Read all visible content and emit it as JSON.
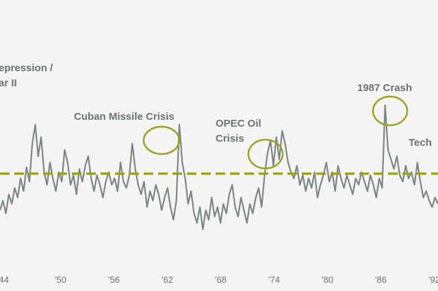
{
  "chart_data": {
    "type": "line",
    "title": "",
    "xlabel": "",
    "ylabel": "",
    "x_tick_labels": [
      "'44",
      "'50",
      "'56",
      "'62",
      "'68",
      "'74",
      "'80",
      "'86",
      "'92"
    ],
    "grid": false,
    "reference_line": {
      "style": "dashed",
      "color": "#9aa31e",
      "relative_level": 0.5
    },
    "colors": {
      "series": "#7d8585",
      "reference": "#9aa31e",
      "circle": "#9aa31e",
      "text": "#6b7373",
      "background": "#f4f4f4"
    },
    "annotations": [
      {
        "lines": [
          "epression /",
          "ar II"
        ]
      },
      {
        "lines": [
          "Cuban Missile Crisis"
        ]
      },
      {
        "lines": [
          "OPEC Oil",
          "Crisis"
        ]
      },
      {
        "lines": [
          "1987 Crash"
        ]
      },
      {
        "lines": [
          "Tech"
        ]
      }
    ],
    "series": [
      {
        "values": [
          0.28,
          0.34,
          0.26,
          0.38,
          0.32,
          0.42,
          0.36,
          0.48,
          0.4,
          0.55,
          0.46,
          0.7,
          0.82,
          0.62,
          0.74,
          0.52,
          0.44,
          0.58,
          0.48,
          0.4,
          0.52,
          0.46,
          0.66,
          0.58,
          0.44,
          0.5,
          0.38,
          0.54,
          0.46,
          0.56,
          0.62,
          0.48,
          0.4,
          0.5,
          0.44,
          0.36,
          0.46,
          0.52,
          0.44,
          0.48,
          0.4,
          0.58,
          0.46,
          0.42,
          0.5,
          0.7,
          0.54,
          0.44,
          0.38,
          0.46,
          0.3,
          0.4,
          0.34,
          0.44,
          0.38,
          0.28,
          0.36,
          0.42,
          0.3,
          0.22,
          0.34,
          0.82,
          0.58,
          0.48,
          0.32,
          0.4,
          0.26,
          0.2,
          0.3,
          0.16,
          0.28,
          0.22,
          0.36,
          0.24,
          0.3,
          0.2,
          0.32,
          0.26,
          0.38,
          0.44,
          0.3,
          0.24,
          0.36,
          0.28,
          0.2,
          0.32,
          0.26,
          0.36,
          0.42,
          0.3,
          0.5,
          0.64,
          0.72,
          0.56,
          0.74,
          0.6,
          0.78,
          0.7,
          0.58,
          0.52,
          0.48,
          0.56,
          0.44,
          0.5,
          0.4,
          0.48,
          0.42,
          0.52,
          0.36,
          0.44,
          0.5,
          0.58,
          0.46,
          0.52,
          0.4,
          0.56,
          0.48,
          0.42,
          0.5,
          0.44,
          0.38,
          0.48,
          0.44,
          0.52,
          0.46,
          0.4,
          0.5,
          0.44,
          0.36,
          0.48,
          0.42,
          0.94,
          0.66,
          0.6,
          0.54,
          0.62,
          0.5,
          0.46,
          0.56,
          0.48,
          0.52,
          0.44,
          0.58,
          0.46,
          0.36,
          0.4,
          0.34,
          0.3,
          0.36,
          0.32
        ]
      }
    ]
  }
}
